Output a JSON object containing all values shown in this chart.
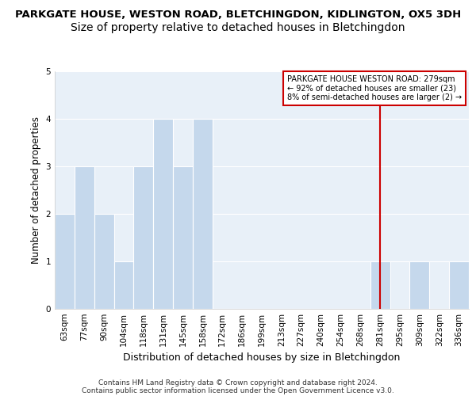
{
  "title_line1": "PARKGATE HOUSE, WESTON ROAD, BLETCHINGDON, KIDLINGTON, OX5 3DH",
  "title_line2": "Size of property relative to detached houses in Bletchingdon",
  "xlabel": "Distribution of detached houses by size in Bletchingdon",
  "ylabel": "Number of detached properties",
  "categories": [
    "63sqm",
    "77sqm",
    "90sqm",
    "104sqm",
    "118sqm",
    "131sqm",
    "145sqm",
    "158sqm",
    "172sqm",
    "186sqm",
    "199sqm",
    "213sqm",
    "227sqm",
    "240sqm",
    "254sqm",
    "268sqm",
    "281sqm",
    "295sqm",
    "309sqm",
    "322sqm",
    "336sqm"
  ],
  "values": [
    2,
    3,
    2,
    1,
    3,
    4,
    3,
    4,
    0,
    0,
    0,
    0,
    0,
    0,
    0,
    0,
    1,
    0,
    1,
    0,
    1
  ],
  "vline_index": 16,
  "bar_color_normal": "#c5d8ec",
  "bar_color_highlight": "#c5d8ec",
  "background_color": "#e8f0f8",
  "annotation_line1": "PARKGATE HOUSE WESTON ROAD: 279sqm",
  "annotation_line2": "← 92% of detached houses are smaller (23)",
  "annotation_line3": "8% of semi-detached houses are larger (2) →",
  "annotation_box_facecolor": "#ffffff",
  "annotation_border_color": "#cc0000",
  "vline_color": "#cc0000",
  "ylim": [
    0,
    5
  ],
  "yticks": [
    0,
    1,
    2,
    3,
    4,
    5
  ],
  "footer_line1": "Contains HM Land Registry data © Crown copyright and database right 2024.",
  "footer_line2": "Contains public sector information licensed under the Open Government Licence v3.0.",
  "title_fontsize": 9.5,
  "subtitle_fontsize": 10,
  "axis_label_fontsize": 9,
  "tick_fontsize": 7.5,
  "ylabel_fontsize": 8.5
}
